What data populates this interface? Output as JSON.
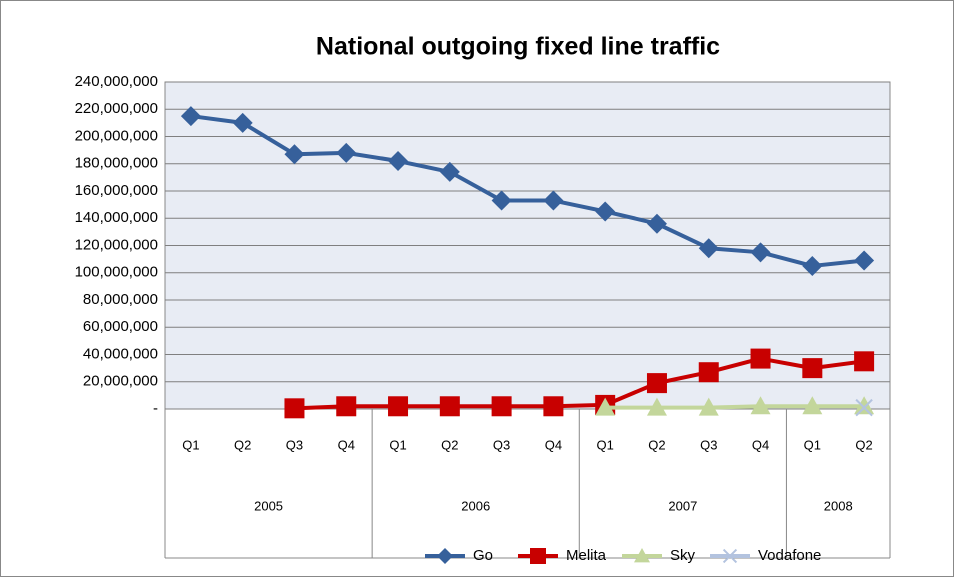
{
  "chart_data": {
    "type": "line",
    "title": "National outgoing fixed line traffic",
    "categories": [
      "Q1",
      "Q2",
      "Q3",
      "Q4",
      "Q1",
      "Q2",
      "Q3",
      "Q4",
      "Q1",
      "Q2",
      "Q3",
      "Q4",
      "Q1",
      "Q2"
    ],
    "category_groups": [
      {
        "label": "2005",
        "count": 4
      },
      {
        "label": "2006",
        "count": 4
      },
      {
        "label": "2007",
        "count": 4
      },
      {
        "label": "2008",
        "count": 2
      }
    ],
    "series": [
      {
        "name": "Go",
        "color": "#36609b",
        "marker": "diamond",
        "values": [
          215000000,
          210000000,
          187000000,
          188000000,
          182000000,
          174000000,
          153000000,
          153000000,
          145000000,
          136000000,
          118000000,
          115000000,
          105000000,
          109000000
        ]
      },
      {
        "name": "Melita",
        "color": "#c80000",
        "marker": "square",
        "values": [
          null,
          null,
          500000,
          2000000,
          2000000,
          2000000,
          2000000,
          2000000,
          3000000,
          19000000,
          27000000,
          37000000,
          30000000,
          35000000
        ]
      },
      {
        "name": "Sky",
        "color": "#c3d69b",
        "marker": "triangle",
        "values": [
          null,
          null,
          null,
          null,
          null,
          null,
          null,
          null,
          1000000,
          1000000,
          1000000,
          2000000,
          2000000,
          2000000
        ]
      },
      {
        "name": "Vodafone",
        "color": "#b3c3df",
        "marker": "x",
        "values": [
          null,
          null,
          null,
          null,
          null,
          null,
          null,
          null,
          null,
          null,
          null,
          null,
          null,
          1000000
        ]
      }
    ],
    "ylim": [
      0,
      240000000
    ],
    "yticks": [
      {
        "value": 0,
        "label": "-"
      },
      {
        "value": 20000000,
        "label": "20,000,000"
      },
      {
        "value": 40000000,
        "label": "40,000,000"
      },
      {
        "value": 60000000,
        "label": "60,000,000"
      },
      {
        "value": 80000000,
        "label": "80,000,000"
      },
      {
        "value": 100000000,
        "label": "100,000,000"
      },
      {
        "value": 120000000,
        "label": "120,000,000"
      },
      {
        "value": 140000000,
        "label": "140,000,000"
      },
      {
        "value": 160000000,
        "label": "160,000,000"
      },
      {
        "value": 180000000,
        "label": "180,000,000"
      },
      {
        "value": 200000000,
        "label": "200,000,000"
      },
      {
        "value": 220000000,
        "label": "220,000,000"
      },
      {
        "value": 240000000,
        "label": "240,000,000"
      }
    ],
    "grid": true,
    "legend": "bottom"
  }
}
